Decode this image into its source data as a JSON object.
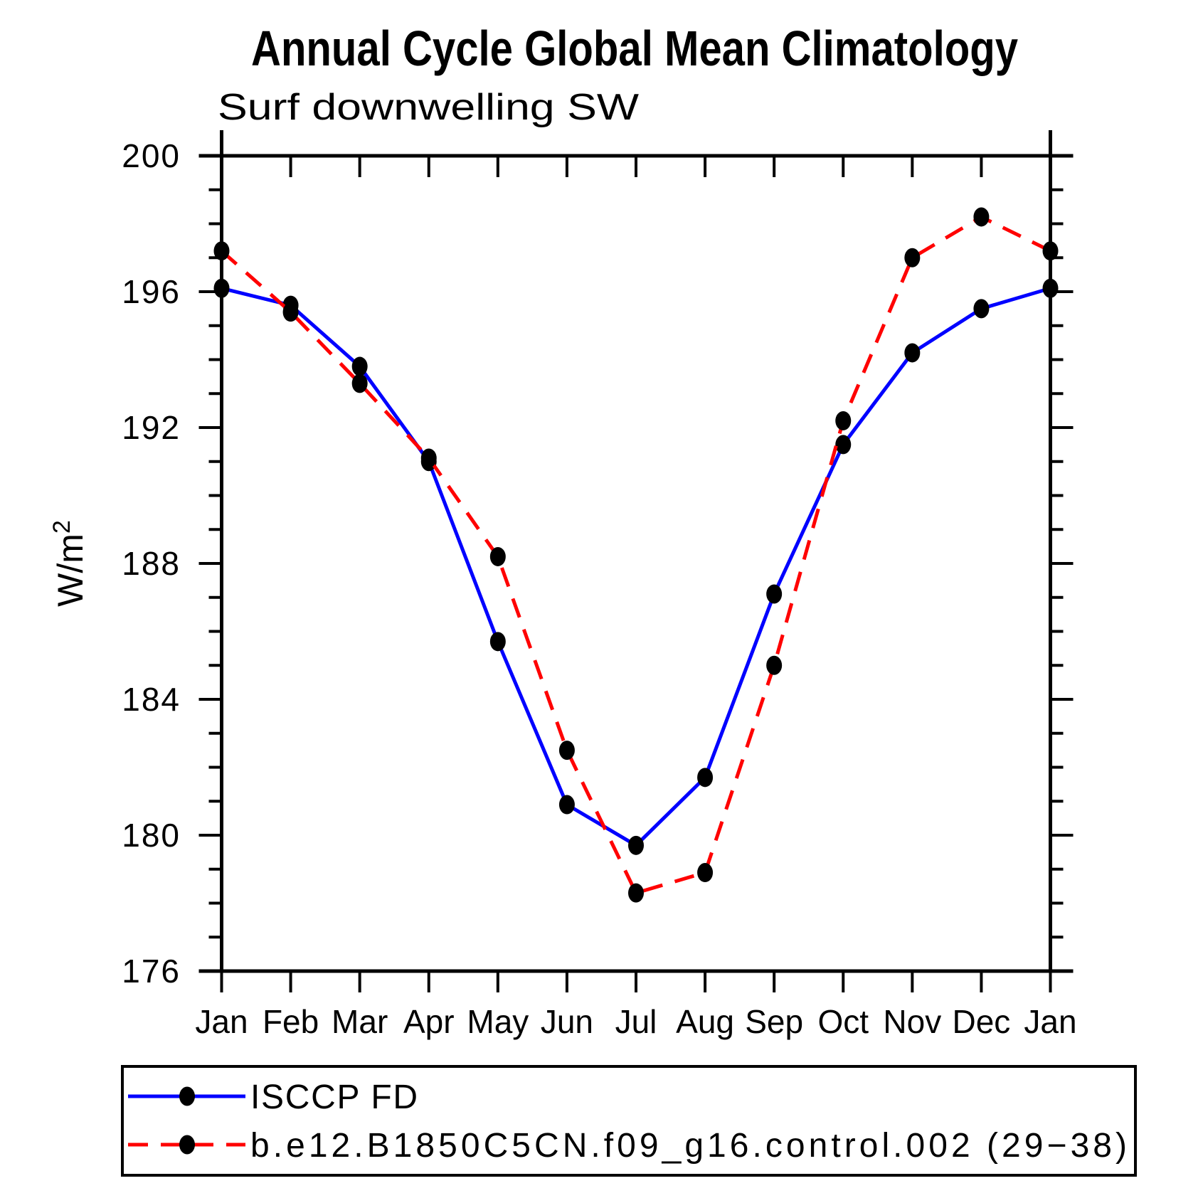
{
  "page": {
    "background": "#ffffff"
  },
  "title": "Annual Cycle Global Mean Climatology",
  "subtitle": "Surf downwelling SW",
  "chart_data": {
    "type": "line",
    "title": "Annual Cycle Global Mean Climatology",
    "subtitle": "Surf downwelling SW",
    "ylabel": "W/m²",
    "xlabel": "",
    "categories": [
      "Jan",
      "Feb",
      "Mar",
      "Apr",
      "May",
      "Jun",
      "Jul",
      "Aug",
      "Sep",
      "Oct",
      "Nov",
      "Dec",
      "Jan"
    ],
    "ylim": [
      176,
      200
    ],
    "ytick_major": [
      176,
      180,
      184,
      188,
      192,
      196,
      200
    ],
    "ytick_minor_step": 1,
    "grid": false,
    "legend_position": "bottom",
    "marker": {
      "shape": "ellipse",
      "color": "#000000"
    },
    "series": [
      {
        "name": "ISCCP FD",
        "color": "#0000ff",
        "line_style": "solid",
        "values": [
          196.1,
          195.6,
          193.8,
          191.0,
          185.7,
          180.9,
          179.7,
          181.7,
          187.1,
          191.5,
          194.2,
          195.5,
          196.1
        ]
      },
      {
        "name": "b.e12.B1850C5CN.f09_g16.control.002 (29−38)",
        "color": "#ff0000",
        "line_style": "dashed",
        "values": [
          197.2,
          195.4,
          193.3,
          191.1,
          188.2,
          182.5,
          178.3,
          178.9,
          185.0,
          192.2,
          197.0,
          198.2,
          197.2
        ]
      }
    ]
  },
  "colors": {
    "axis": "#000000",
    "marker": "#000000",
    "obs_line": "#0000ff",
    "model_line": "#ff0000"
  }
}
